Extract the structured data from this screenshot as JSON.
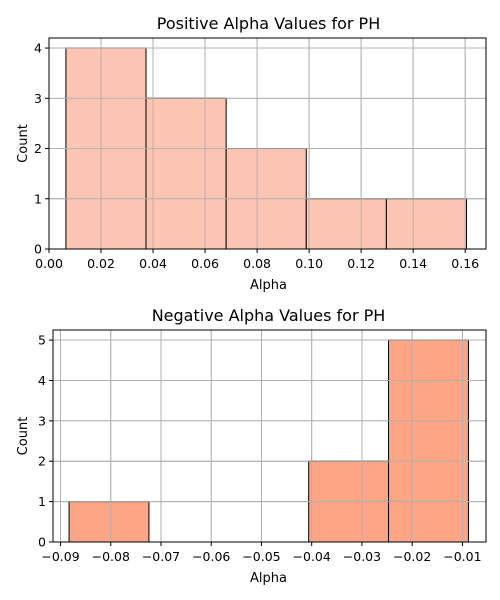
{
  "chart_data": [
    {
      "type": "histogram",
      "title": "Positive Alpha Values for PH",
      "xlabel": "Alpha",
      "ylabel": "Count",
      "bin_edges": [
        0.0065,
        0.0373,
        0.0681,
        0.0989,
        0.1297,
        0.1605
      ],
      "counts": [
        4,
        3,
        2,
        1,
        1
      ],
      "xlim": [
        0.0,
        0.168
      ],
      "ylim": [
        0,
        4.2
      ],
      "xticks": [
        0.0,
        0.02,
        0.04,
        0.06,
        0.08,
        0.1,
        0.12,
        0.14,
        0.16
      ],
      "xtick_labels": [
        "0.00",
        "0.02",
        "0.04",
        "0.06",
        "0.08",
        "0.10",
        "0.12",
        "0.14",
        "0.16"
      ],
      "yticks": [
        0,
        1,
        2,
        3,
        4
      ],
      "ytick_labels": [
        "0",
        "1",
        "2",
        "3",
        "4"
      ],
      "grid": true,
      "bar_color": "#fcc5b3"
    },
    {
      "type": "histogram",
      "title": "Negative Alpha Values for PH",
      "xlabel": "Alpha",
      "ylabel": "Count",
      "bin_edges": [
        -0.0883,
        -0.0724,
        -0.0565,
        -0.0406,
        -0.0247,
        -0.0088
      ],
      "counts": [
        1,
        0,
        0,
        2,
        5
      ],
      "xlim": [
        -0.0915,
        -0.0053
      ],
      "ylim": [
        0,
        5.25
      ],
      "xticks": [
        -0.09,
        -0.08,
        -0.07,
        -0.06,
        -0.05,
        -0.04,
        -0.03,
        -0.02,
        -0.01
      ],
      "xtick_labels": [
        "−0.09",
        "−0.08",
        "−0.07",
        "−0.06",
        "−0.05",
        "−0.04",
        "−0.03",
        "−0.02",
        "−0.01"
      ],
      "yticks": [
        0,
        1,
        2,
        3,
        4,
        5
      ],
      "ytick_labels": [
        "0",
        "1",
        "2",
        "3",
        "4",
        "5"
      ],
      "grid": true,
      "bar_color": "#fda585"
    }
  ]
}
